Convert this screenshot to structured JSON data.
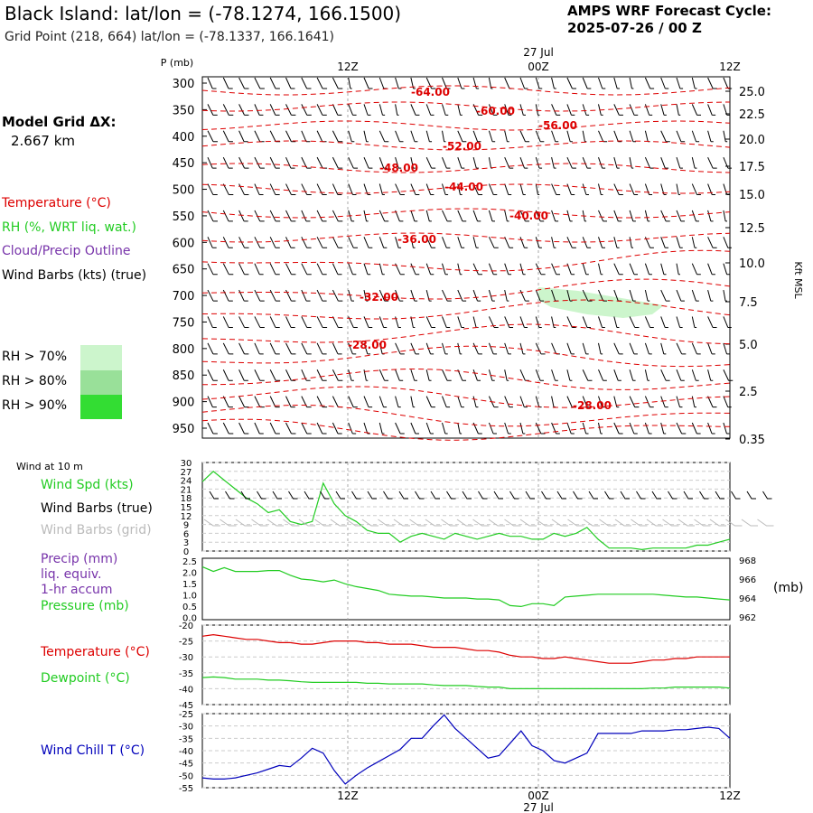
{
  "header": {
    "title": "Black Island:  lat/lon = (-78.1274, 166.1500)",
    "subtitle": "Grid Point (218, 664) lat/lon = (-78.1337, 166.1641)",
    "cycle_line1": "AMPS WRF Forecast Cycle:",
    "cycle_line2": "2025-07-26 / 00  Z"
  },
  "model": {
    "label": "Model Grid ΔX:",
    "value": "2.667 km"
  },
  "legend": {
    "temperature": "Temperature (°C)",
    "rh": "RH (%, WRT liq. wat.)",
    "cloud": "Cloud/Precip Outline",
    "wind_barbs": "Wind Barbs (kts) (true)",
    "rh70": "RH > 70%",
    "rh80": "RH > 80%",
    "rh90": "RH > 90%",
    "wind10m": "Wind at 10 m",
    "wind_spd": "Wind Spd (kts)",
    "barbs_true": "Wind Barbs (true)",
    "barbs_grid": "Wind Barbs (grid)",
    "precip1": "Precip (mm)",
    "precip2": "liq. equiv.",
    "precip3": "1-hr accum",
    "pressure": "Pressure (mb)",
    "temp": "Temperature (°C)",
    "dew": "Dewpoint (°C)",
    "windchill": "Wind Chill T (°C)",
    "mb_unit": "(mb)"
  },
  "colors": {
    "temperature": "#dd0000",
    "rh": "#22cc22",
    "cloud": "#7733aa",
    "grid_barbs": "#bbbbbb",
    "windchill": "#0000bb",
    "rh70": "#ccf5cc",
    "rh80": "#99e099",
    "rh90": "#33dd33"
  },
  "time_axis": {
    "labels": [
      "12Z",
      "00Z",
      "12Z"
    ],
    "date_label": "27 Jul",
    "pressure_title": "P (mb)",
    "kft_title": "Kft MSL"
  },
  "chart_data": [
    {
      "type": "line",
      "panel": "pressure-height cross-section",
      "y_pressure_ticks": [
        "300",
        "350",
        "400",
        "450",
        "500",
        "550",
        "600",
        "650",
        "700",
        "750",
        "800",
        "850",
        "900",
        "950"
      ],
      "y_height_ticks": [
        "25.0",
        "22.5",
        "20.0",
        "17.5",
        "15.0",
        "12.5",
        "10.0",
        "7.5",
        "5.0",
        "2.5",
        "0.35"
      ],
      "ylabel_left": "P (mb)",
      "ylabel_right": "Kft MSL",
      "x_ticks": [
        "12Z",
        "00Z",
        "12Z"
      ],
      "temperature_contour_labels": [
        "-64.00",
        "-60.00",
        "-56.00",
        "-52.00",
        "-48.00",
        "-44.00",
        "-40.00",
        "-36.00",
        "-32.00",
        "-28.00",
        "-28.00"
      ],
      "rh_shading": [
        "RH > 70%"
      ]
    },
    {
      "type": "line",
      "panel": "10 m wind",
      "y_ticks": [
        "30",
        "27",
        "24",
        "21",
        "18",
        "15",
        "12",
        "9",
        "6",
        "3",
        "0"
      ],
      "ylim": [
        0,
        30
      ],
      "series": [
        {
          "name": "Wind Spd (kts)",
          "x": [
            0,
            1,
            2,
            3,
            4,
            5,
            6,
            7,
            8,
            9,
            10,
            11,
            12,
            13,
            14,
            15,
            16,
            17,
            18,
            19,
            20,
            21,
            22,
            23,
            24,
            25,
            26,
            27,
            28,
            29,
            30,
            31,
            32,
            33,
            34,
            35,
            36,
            37,
            38,
            39,
            40,
            41,
            42,
            43,
            44,
            45,
            46,
            47,
            48
          ],
          "values": [
            23.5,
            27,
            24,
            21,
            18,
            16,
            13,
            14,
            10,
            9,
            10,
            23,
            16,
            12,
            10,
            7,
            6,
            6,
            3,
            5,
            6,
            5,
            4,
            6,
            5,
            4,
            5,
            6,
            5,
            5,
            4,
            4,
            6,
            5,
            6,
            8,
            4,
            1,
            1,
            1,
            0.5,
            1,
            1,
            1,
            1,
            2,
            2,
            3,
            4
          ]
        }
      ]
    },
    {
      "type": "line",
      "panel": "precip and pressure",
      "y_ticks_left": [
        "2.5",
        "2.0",
        "1.5",
        "1.0",
        "0.5",
        "0.0"
      ],
      "y_ticks_right": [
        "968",
        "966",
        "964",
        "962"
      ],
      "series": [
        {
          "name": "Pressure (mb)",
          "values": [
            967.3,
            966.8,
            967.2,
            966.8,
            966.8,
            966.8,
            966.9,
            966.9,
            966.4,
            966.0,
            965.9,
            965.7,
            965.9,
            965.5,
            965.2,
            965.0,
            964.8,
            964.4,
            964.3,
            964.2,
            964.2,
            964.1,
            964.0,
            964.0,
            964.0,
            963.9,
            963.9,
            963.8,
            963.2,
            963.1,
            963.4,
            963.4,
            963.2,
            964.1,
            964.2,
            964.3,
            964.4,
            964.4,
            964.4,
            964.4,
            964.4,
            964.4,
            964.3,
            964.2,
            964.1,
            964.1,
            964.0,
            963.9,
            963.8
          ]
        }
      ]
    },
    {
      "type": "line",
      "panel": "temperature and dewpoint",
      "y_ticks": [
        "-20",
        "-25",
        "-30",
        "-35",
        "-40",
        "-45"
      ],
      "ylim": [
        -45,
        -20
      ],
      "series": [
        {
          "name": "Temperature (°C)",
          "values": [
            -23.5,
            -23,
            -23.5,
            -24,
            -24.5,
            -24.5,
            -25,
            -25.5,
            -25.5,
            -26,
            -26,
            -25.5,
            -25,
            -25,
            -25,
            -25.5,
            -25.5,
            -26,
            -26,
            -26,
            -26.5,
            -27,
            -27,
            -27,
            -27.5,
            -28,
            -28,
            -28.5,
            -29.5,
            -30,
            -30,
            -30.5,
            -30.5,
            -30,
            -30.5,
            -31,
            -31.5,
            -32,
            -32,
            -32,
            -31.5,
            -31,
            -31,
            -30.5,
            -30.5,
            -30,
            -30,
            -30,
            -30
          ]
        },
        {
          "name": "Dewpoint (°C)",
          "values": [
            -36.5,
            -36.3,
            -36.5,
            -37,
            -37,
            -37,
            -37.3,
            -37.3,
            -37.5,
            -37.8,
            -38,
            -38,
            -38,
            -38,
            -38,
            -38.3,
            -38.3,
            -38.5,
            -38.5,
            -38.5,
            -38.5,
            -38.8,
            -39,
            -39,
            -39,
            -39.3,
            -39.5,
            -39.5,
            -40,
            -40,
            -40,
            -40,
            -40,
            -40,
            -40,
            -40,
            -40,
            -40,
            -40,
            -40,
            -40,
            -39.8,
            -39.8,
            -39.5,
            -39.5,
            -39.5,
            -39.5,
            -39.5,
            -39.8
          ]
        }
      ]
    },
    {
      "type": "line",
      "panel": "wind chill",
      "y_ticks": [
        "-25",
        "-30",
        "-35",
        "-40",
        "-45",
        "-50",
        "-55"
      ],
      "ylim": [
        -55,
        -25
      ],
      "series": [
        {
          "name": "Wind Chill T (°C)",
          "values": [
            -51,
            -51.5,
            -51.5,
            -51,
            -50,
            -49,
            -47.5,
            -46,
            -46.5,
            -43,
            -39,
            -41,
            -48,
            -53.5,
            -50,
            -47,
            -44.5,
            -42,
            -39.5,
            -35,
            -35,
            -30,
            -25.5,
            -31,
            -35,
            -39,
            -43,
            -42,
            -37,
            -32,
            -38,
            -40,
            -44,
            -45,
            -43,
            -41,
            -33,
            -33,
            -33,
            -33,
            -32,
            -32,
            -32,
            -31.5,
            -31.5,
            -31,
            -30.5,
            -31,
            -35
          ]
        }
      ]
    }
  ]
}
